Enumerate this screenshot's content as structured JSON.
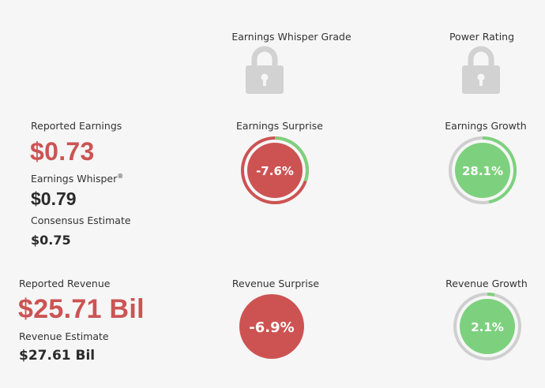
{
  "colors": {
    "red": "#cd5353",
    "green": "#7dd17e",
    "gray_ring": "#cfcfcf",
    "lock": "#d2d2d2",
    "background": "#f6f6f6"
  },
  "header": {
    "whisper_grade_label": "Earnings Whisper Grade",
    "power_rating_label": "Power Rating",
    "whisper_grade_icon": "lock-icon",
    "power_rating_icon": "lock-icon"
  },
  "earnings": {
    "reported_label": "Reported Earnings",
    "reported_value": "$0.73",
    "whisper_label": "Earnings Whisper",
    "whisper_mark": "®",
    "whisper_value": "$0.79",
    "consensus_label": "Consensus Estimate",
    "consensus_value": "$0.75"
  },
  "earnings_surprise": {
    "label": "Earnings Surprise",
    "value_text": "-7.6%",
    "percent": -7.6
  },
  "earnings_growth": {
    "label": "Earnings Growth",
    "value_text": "28.1%",
    "percent": 28.1
  },
  "revenue": {
    "reported_label": "Reported Revenue",
    "reported_value": "$25.71 Bil",
    "estimate_label": "Revenue Estimate",
    "estimate_value": "$27.61 Bil"
  },
  "revenue_surprise": {
    "label": "Revenue Surprise",
    "value_text": "-6.9%",
    "percent": -6.9
  },
  "revenue_growth": {
    "label": "Revenue Growth",
    "value_text": "2.1%",
    "percent": 2.1
  }
}
